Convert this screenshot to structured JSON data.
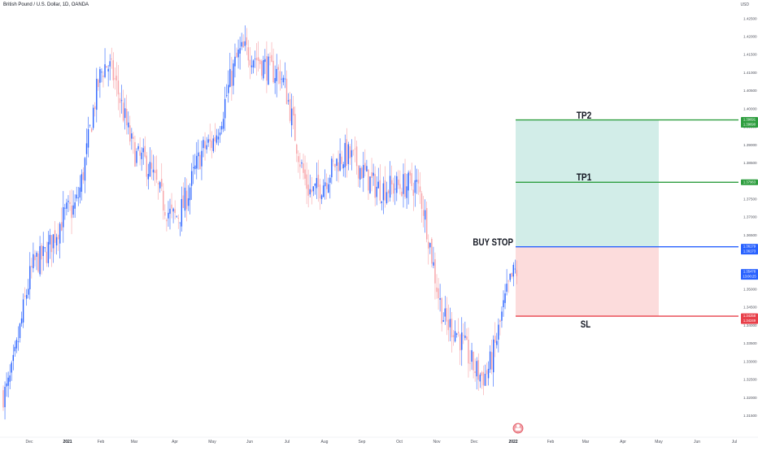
{
  "header": {
    "symbol_title": "British Pound / U.S. Dollar, 1D, OANDA",
    "currency": "USD"
  },
  "colors": {
    "up_candle": "#2962ff",
    "down_candle": "#f7a1a6",
    "tp_line": "#2e9e3f",
    "entry_line": "#2962ff",
    "sl_line": "#e8404a",
    "profit_zone": "#d2ede8",
    "loss_zone": "#fcdcdc",
    "axis_text": "#50535e"
  },
  "chart_data": {
    "type": "candlestick",
    "title": "British Pound / U.S. Dollar, 1D, OANDA",
    "ylim": [
      1.3115,
      1.4265
    ],
    "y_ticks": [
      "1.42500",
      "1.42000",
      "1.41500",
      "1.41000",
      "1.40500",
      "1.40000",
      "1.39500",
      "1.39000",
      "1.38500",
      "1.38000",
      "1.37500",
      "1.37000",
      "1.36500",
      "1.36000",
      "1.35500",
      "1.35000",
      "1.34500",
      "1.34000",
      "1.33500",
      "1.33000",
      "1.32500",
      "1.32000",
      "1.31500",
      "1.31000"
    ],
    "x_ticks": [
      "Dec",
      "2021",
      "Feb",
      "Mar",
      "Apr",
      "May",
      "Jun",
      "Jul",
      "Aug",
      "Sep",
      "Oct",
      "Nov",
      "Dec",
      "2022",
      "Feb",
      "Mar",
      "Apr",
      "May",
      "Jun",
      "Jul"
    ],
    "price_path": [
      {
        "month": "Dec",
        "price": 1.321
      },
      {
        "month": "2021",
        "price": 1.358
      },
      {
        "month": "Feb",
        "price": 1.372
      },
      {
        "month": "Mar",
        "price": 1.412
      },
      {
        "month": "Mar",
        "price": 1.386
      },
      {
        "month": "Apr",
        "price": 1.37
      },
      {
        "month": "May",
        "price": 1.39
      },
      {
        "month": "Jun",
        "price": 1.416
      },
      {
        "month": "Jun",
        "price": 1.41
      },
      {
        "month": "Jul",
        "price": 1.377
      },
      {
        "month": "Aug",
        "price": 1.387
      },
      {
        "month": "Sep",
        "price": 1.378
      },
      {
        "month": "Oct",
        "price": 1.379
      },
      {
        "month": "Nov",
        "price": 1.34
      },
      {
        "month": "Dec",
        "price": 1.326
      },
      {
        "month": "2022",
        "price": 1.355
      }
    ],
    "last_price": "1.35478",
    "countdown": "13:00:25",
    "levels": [
      {
        "label": "TP2",
        "price_label": "1.39691",
        "price_label_2": "1.39690",
        "price": 1.3969
      },
      {
        "label": "TP1",
        "price_label": "1.37963",
        "price": 1.37963
      },
      {
        "label": "BUY STOP",
        "price_label": "1.36179",
        "price_label_2": "1.36173",
        "price": 1.36176
      },
      {
        "label": "SL",
        "price_label": "1.34258",
        "price_label_2": "1.34249",
        "price": 1.34254
      }
    ],
    "legend": "none",
    "grid": false
  }
}
